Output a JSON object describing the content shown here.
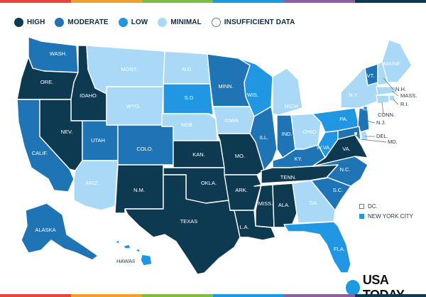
{
  "colors": {
    "high": "#0d3a51",
    "moderate": "#1f74b5",
    "low": "#2196e3",
    "minimal": "#a9d9f6",
    "insufficient": "#ffffff",
    "text": "#0d2a3b"
  },
  "legend": [
    {
      "key": "high",
      "label": "HIGH"
    },
    {
      "key": "moderate",
      "label": "MODERATE"
    },
    {
      "key": "low",
      "label": "LOW"
    },
    {
      "key": "minimal",
      "label": "MINIMAL"
    },
    {
      "key": "insufficient",
      "label": "INSUFFICIENT DATA"
    }
  ],
  "states": {
    "WA": {
      "label": "WASH.",
      "level": "moderate"
    },
    "OR": {
      "label": "ORE.",
      "level": "high"
    },
    "CA": {
      "label": "CALIF.",
      "level": "moderate"
    },
    "ID": {
      "label": "IDAHO",
      "level": "high"
    },
    "NV": {
      "label": "NEV.",
      "level": "high"
    },
    "MT": {
      "label": "MONT.",
      "level": "minimal"
    },
    "WY": {
      "label": "WYO.",
      "level": "minimal"
    },
    "UT": {
      "label": "UTAH",
      "level": "moderate"
    },
    "AZ": {
      "label": "ARIZ.",
      "level": "minimal"
    },
    "CO": {
      "label": "COLO.",
      "level": "moderate"
    },
    "NM": {
      "label": "N.M.",
      "level": "high"
    },
    "ND": {
      "label": "N.D.",
      "level": "minimal"
    },
    "SD": {
      "label": "S.D",
      "level": "low"
    },
    "NE": {
      "label": "NEB.",
      "level": "minimal"
    },
    "KS": {
      "label": "KAN.",
      "level": "high"
    },
    "OK": {
      "label": "OKLA.",
      "level": "high"
    },
    "TX": {
      "label": "TEXAS",
      "level": "high"
    },
    "MN": {
      "label": "MINN.",
      "level": "moderate"
    },
    "IA": {
      "label": "IOWA",
      "level": "minimal"
    },
    "MO": {
      "label": "MO.",
      "level": "high"
    },
    "AR": {
      "label": "ARK.",
      "level": "high"
    },
    "LA": {
      "label": "L.A.",
      "level": "high"
    },
    "WI": {
      "label": "WIS.",
      "level": "low"
    },
    "IL": {
      "label": "ILL.",
      "level": "moderate"
    },
    "MI": {
      "label": "MICH",
      "level": "minimal"
    },
    "IN": {
      "label": "IND.",
      "level": "moderate"
    },
    "OH": {
      "label": "OHIO",
      "level": "minimal"
    },
    "KY": {
      "label": "KY.",
      "level": "moderate"
    },
    "TN": {
      "label": "TENN.",
      "level": "high"
    },
    "MS": {
      "label": "MISS.",
      "level": "high"
    },
    "AL": {
      "label": "ALA.",
      "level": "high"
    },
    "GA": {
      "label": "GA.",
      "level": "minimal"
    },
    "FL": {
      "label": "FLA.",
      "level": "low"
    },
    "SC": {
      "label": "S.C.",
      "level": "moderate"
    },
    "NC": {
      "label": "N.C.",
      "level": "moderate"
    },
    "VA": {
      "label": "VA.",
      "level": "high"
    },
    "WV": {
      "label": "W.VA.",
      "level": "low"
    },
    "PA": {
      "label": "PA.",
      "level": "low"
    },
    "NY": {
      "label": "N.Y.",
      "level": "minimal"
    },
    "VT": {
      "label": "VT.",
      "level": "moderate"
    },
    "NH": {
      "label": "N.H.",
      "level": "minimal"
    },
    "ME": {
      "label": "MAINE",
      "level": "minimal"
    },
    "MA": {
      "label": "MASS.",
      "level": "minimal"
    },
    "RI": {
      "label": "R.I.",
      "level": "minimal"
    },
    "CT": {
      "label": "CONN.",
      "level": "minimal"
    },
    "NJ": {
      "label": "N.J.",
      "level": "moderate"
    },
    "DE": {
      "label": "DEL.",
      "level": "minimal"
    },
    "MD": {
      "label": "MD.",
      "level": "moderate"
    },
    "AK": {
      "label": "ALASKA",
      "level": "moderate"
    },
    "HI": {
      "label": "HAWAII",
      "level": "low"
    }
  },
  "special": [
    {
      "key": "insufficient",
      "label": "DC."
    },
    {
      "key": "low",
      "label": "NEW YORK CITY"
    }
  ],
  "logo": {
    "text": "USA TODAY"
  }
}
